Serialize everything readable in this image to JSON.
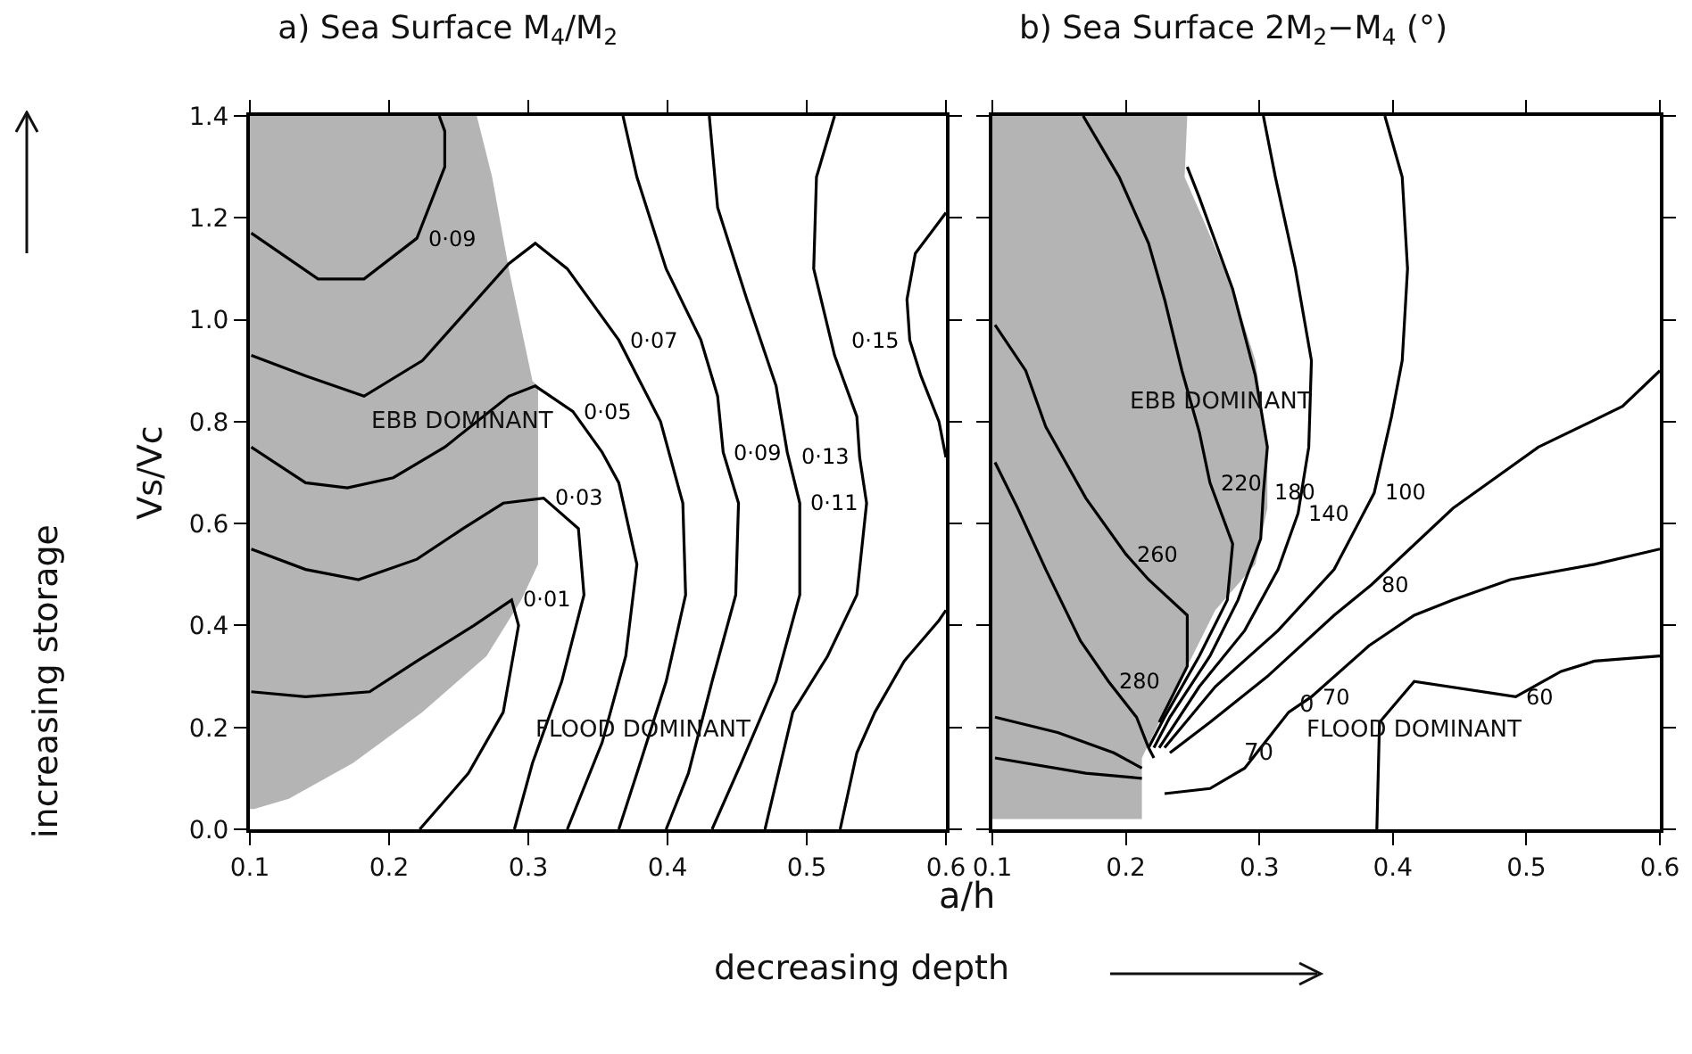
{
  "chart_data": [
    {
      "type": "line",
      "title": "a) Sea Surface M$_{4}$/M$_{2}$",
      "ylabel": "Vs/Vc",
      "xlabel": "a/h",
      "marker": "none",
      "line_style": "solid",
      "grid": false,
      "legend": false,
      "xlim": [
        0.1,
        0.6
      ],
      "ylim": [
        0,
        1.4
      ],
      "xticks": [
        0.1,
        0.2,
        0.3,
        0.4,
        0.5,
        0.6
      ],
      "yticks": [
        {
          "value": 0,
          "label": "0.0"
        },
        0.2,
        0.4,
        0.6,
        0.8,
        {
          "value": 1.0,
          "label": "1.0"
        },
        1.2,
        1.4
      ],
      "annotations": [
        "EBB DOMINANT",
        "FLOOD DOMINANT",
        "decreasing depth",
        "increasing storage"
      ],
      "series": [
        {
          "type": "area",
          "color": "#b4b4b4",
          "x": [
            0.1,
            0.263,
            0.274,
            0.286,
            0.303,
            0.307,
            0.307,
            0.295,
            0.27,
            0.224,
            0.174,
            0.128,
            0.103,
            0.1
          ],
          "values": [
            1.4,
            1.4,
            1.28,
            1.1,
            0.88,
            0.87,
            0.52,
            0.45,
            0.34,
            0.23,
            0.13,
            0.06,
            0.04,
            0.04
          ]
        },
        {
          "name": "0·09",
          "color": "#000000",
          "x": [
            0.101,
            0.149,
            0.182,
            0.22,
            0.24,
            0.24,
            0.236
          ],
          "values": [
            1.17,
            1.08,
            1.08,
            1.16,
            1.3,
            1.37,
            1.4
          ]
        },
        {
          "name": "0·07",
          "color": "#000000",
          "x": [
            0.101,
            0.14,
            0.182,
            0.224,
            0.286,
            0.305,
            0.328,
            0.365,
            0.395,
            0.411,
            0.413,
            0.399,
            0.378,
            0.365
          ],
          "values": [
            0.93,
            0.89,
            0.85,
            0.92,
            1.11,
            1.15,
            1.1,
            0.96,
            0.8,
            0.64,
            0.46,
            0.29,
            0.11,
            0
          ]
        },
        {
          "name": "0·05",
          "color": "#000000",
          "x": [
            0.101,
            0.14,
            0.17,
            0.203,
            0.24,
            0.286,
            0.305,
            0.332,
            0.353,
            0.365,
            0.378,
            0.37,
            0.353,
            0.328
          ],
          "values": [
            0.75,
            0.68,
            0.67,
            0.69,
            0.75,
            0.85,
            0.87,
            0.82,
            0.74,
            0.68,
            0.52,
            0.34,
            0.17,
            0
          ]
        },
        {
          "name": "0·03",
          "color": "#000000",
          "x": [
            0.101,
            0.14,
            0.178,
            0.22,
            0.253,
            0.282,
            0.311,
            0.336,
            0.34,
            0.324,
            0.303,
            0.29
          ],
          "values": [
            0.55,
            0.51,
            0.49,
            0.53,
            0.59,
            0.64,
            0.65,
            0.59,
            0.46,
            0.29,
            0.13,
            0
          ]
        },
        {
          "name": "0·01",
          "color": "#000000",
          "x": [
            0.101,
            0.14,
            0.186,
            0.22,
            0.261,
            0.288,
            0.293,
            0.282,
            0.257,
            0.222
          ],
          "values": [
            0.27,
            0.26,
            0.27,
            0.33,
            0.4,
            0.45,
            0.4,
            0.23,
            0.11,
            0
          ]
        },
        {
          "name": "0·09",
          "color": "#000000",
          "x": [
            0.368,
            0.378,
            0.399,
            0.424,
            0.436,
            0.44,
            0.451,
            0.449,
            0.432,
            0.415,
            0.399
          ],
          "values": [
            1.4,
            1.28,
            1.1,
            0.96,
            0.85,
            0.74,
            0.64,
            0.46,
            0.29,
            0.11,
            0
          ]
        },
        {
          "name": "0·11",
          "color": "#000000",
          "x": [
            0.43,
            0.436,
            0.457,
            0.478,
            0.486,
            0.495,
            0.495,
            0.478,
            0.453,
            0.432
          ],
          "values": [
            1.4,
            1.22,
            1.04,
            0.87,
            0.74,
            0.64,
            0.46,
            0.29,
            0.13,
            0
          ]
        },
        {
          "name": "0·13",
          "color": "#000000",
          "x": [
            0.52,
            0.507,
            0.505,
            0.52,
            0.536,
            0.538,
            0.543,
            0.536,
            0.515,
            0.49,
            0.47
          ],
          "values": [
            1.4,
            1.28,
            1.1,
            0.93,
            0.81,
            0.73,
            0.64,
            0.46,
            0.34,
            0.23,
            0
          ]
        },
        {
          "name": "0·15",
          "color": "#000000",
          "x": [
            0.6,
            0.578,
            0.572,
            0.574,
            0.582,
            0.595,
            0.6
          ],
          "values": [
            1.21,
            1.13,
            1.04,
            0.96,
            0.89,
            0.8,
            0.73
          ]
        },
        {
          "color": "#000000",
          "x": [
            0.6,
            0.595,
            0.57,
            0.549,
            0.536,
            0.524
          ],
          "values": [
            0.43,
            0.41,
            0.33,
            0.23,
            0.15,
            0
          ]
        }
      ]
    },
    {
      "type": "line",
      "title": "b) Sea Surface 2M$_{2}$−M$_{4}$ (°)",
      "marker": "none",
      "line_style": "solid",
      "grid": false,
      "legend": false,
      "tick_labels": "x",
      "xlim": [
        0.1,
        0.6
      ],
      "ylim": [
        0,
        1.4
      ],
      "xticks": [
        0.1,
        0.2,
        0.3,
        0.4,
        0.5,
        0.6
      ],
      "yticks": [
        0,
        0.2,
        0.4,
        0.6,
        0.8,
        1.0,
        1.2,
        1.4
      ],
      "annotations": [
        "EBB DOMINANT",
        "FLOOD DOMINANT",
        "0",
        "70"
      ],
      "series": [
        {
          "type": "area",
          "color": "#b4b4b4",
          "x": [
            0.1,
            0.246,
            0.244,
            0.259,
            0.28,
            0.297,
            0.306,
            0.306,
            0.297,
            0.267,
            0.246,
            0.225,
            0.212,
            0.212,
            0.1
          ],
          "values": [
            1.4,
            1.4,
            1.28,
            1.19,
            1.06,
            0.92,
            0.75,
            0.63,
            0.52,
            0.43,
            0.32,
            0.21,
            0.14,
            0.02,
            0.02
          ]
        },
        {
          "name": "280",
          "color": "#000000",
          "x": [
            0.102,
            0.119,
            0.14,
            0.166,
            0.187,
            0.208,
            0.217,
            0.221
          ],
          "values": [
            0.72,
            0.63,
            0.51,
            0.37,
            0.29,
            0.22,
            0.16,
            0.14
          ]
        },
        {
          "name": "260",
          "color": "#000000",
          "x": [
            0.102,
            0.125,
            0.14,
            0.17,
            0.2,
            0.217,
            0.246,
            0.246,
            0.225
          ],
          "values": [
            0.99,
            0.9,
            0.79,
            0.65,
            0.54,
            0.49,
            0.42,
            0.32,
            0.21
          ]
        },
        {
          "name": "220",
          "color": "#000000",
          "x": [
            0.168,
            0.195,
            0.217,
            0.229,
            0.242,
            0.255,
            0.263,
            0.28,
            0.276,
            0.255,
            0.229,
            0.217
          ],
          "values": [
            1.4,
            1.28,
            1.15,
            1.04,
            0.9,
            0.78,
            0.68,
            0.56,
            0.45,
            0.34,
            0.22,
            0.16
          ]
        },
        {
          "name": "180",
          "color": "#000000",
          "x": [
            0.246,
            0.255,
            0.28,
            0.297,
            0.306,
            0.303,
            0.301,
            0.284,
            0.263,
            0.233,
            0.221
          ],
          "values": [
            1.3,
            1.24,
            1.06,
            0.89,
            0.75,
            0.66,
            0.57,
            0.45,
            0.34,
            0.22,
            0.16
          ]
        },
        {
          "name": "140",
          "color": "#000000",
          "x": [
            0.303,
            0.312,
            0.327,
            0.339,
            0.337,
            0.329,
            0.314,
            0.289,
            0.255,
            0.225
          ],
          "values": [
            1.4,
            1.28,
            1.1,
            0.92,
            0.75,
            0.62,
            0.51,
            0.39,
            0.28,
            0.16
          ]
        },
        {
          "name": "100",
          "color": "#000000",
          "x": [
            0.394,
            0.407,
            0.411,
            0.407,
            0.399,
            0.386,
            0.356,
            0.314,
            0.267,
            0.229
          ],
          "values": [
            1.4,
            1.28,
            1.1,
            0.92,
            0.81,
            0.66,
            0.51,
            0.39,
            0.28,
            0.16
          ]
        },
        {
          "name": "80",
          "color": "#000000",
          "x": [
            0.6,
            0.572,
            0.509,
            0.445,
            0.384,
            0.356,
            0.306,
            0.263,
            0.233
          ],
          "values": [
            0.9,
            0.83,
            0.75,
            0.63,
            0.48,
            0.42,
            0.3,
            0.21,
            0.15
          ]
        },
        {
          "name": "70",
          "color": "#000000",
          "x": [
            0.6,
            0.551,
            0.488,
            0.445,
            0.416,
            0.382,
            0.339,
            0.322,
            0.31,
            0.289,
            0.263,
            0.229
          ],
          "values": [
            0.55,
            0.52,
            0.49,
            0.45,
            0.42,
            0.36,
            0.26,
            0.23,
            0.19,
            0.12,
            0.08,
            0.07
          ]
        },
        {
          "name": "60",
          "color": "#000000",
          "x": [
            0.6,
            0.551,
            0.526,
            0.492,
            0.416,
            0.39,
            0.388
          ],
          "values": [
            0.34,
            0.33,
            0.31,
            0.26,
            0.29,
            0.21,
            0
          ]
        },
        {
          "color": "#000000",
          "x": [
            0.102,
            0.149,
            0.191,
            0.212
          ],
          "values": [
            0.22,
            0.19,
            0.15,
            0.12
          ]
        },
        {
          "color": "#000000",
          "x": [
            0.102,
            0.17,
            0.212
          ],
          "values": [
            0.14,
            0.11,
            0.1
          ]
        }
      ]
    }
  ]
}
